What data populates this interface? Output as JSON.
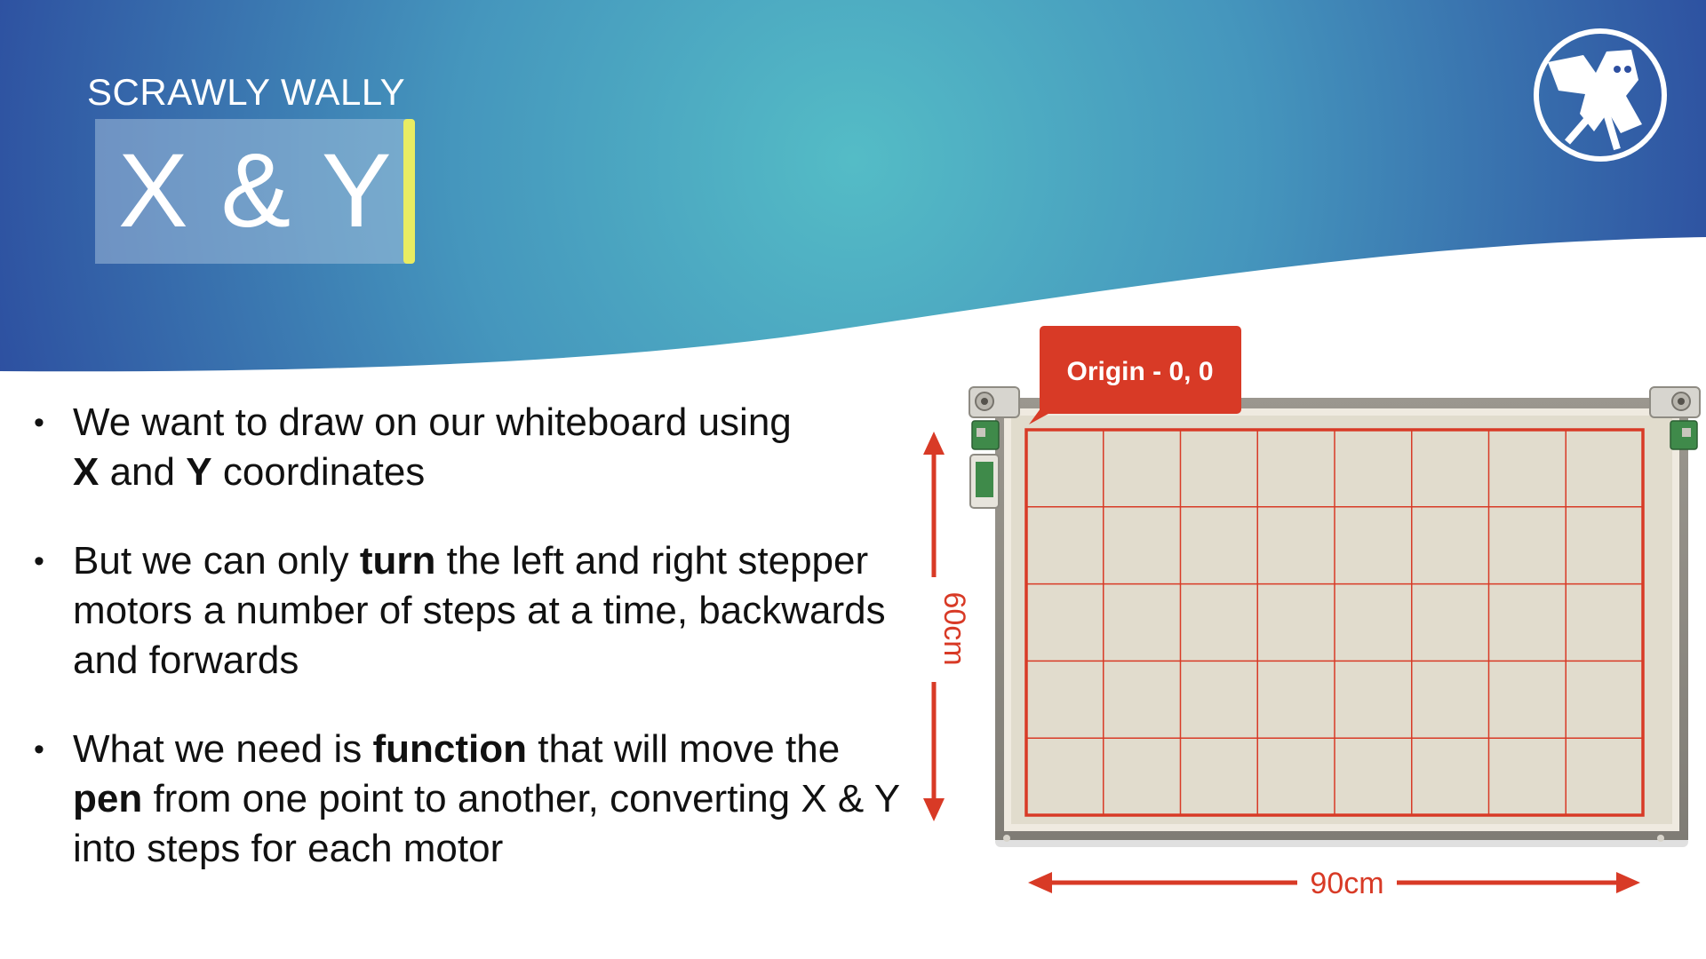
{
  "header": {
    "kicker": "SCRAWLY WALLY",
    "title": "X & Y"
  },
  "logo": {
    "icon": "scrawly-wally-logo-icon"
  },
  "bullets": [
    {
      "parts": [
        {
          "text": "We want to draw on our whiteboard using ",
          "bold": false
        },
        {
          "text": "X",
          "bold": true
        },
        {
          "text": " and ",
          "bold": false
        },
        {
          "text": "Y",
          "bold": true
        },
        {
          "text": " coordinates",
          "bold": false
        }
      ]
    },
    {
      "parts": [
        {
          "text": "But we can only ",
          "bold": false
        },
        {
          "text": "turn",
          "bold": true
        },
        {
          "text": " the left and right stepper motors a number of steps at a time, backwards and forwards",
          "bold": false
        }
      ]
    },
    {
      "parts": [
        {
          "text": "What we need is ",
          "bold": false
        },
        {
          "text": "function",
          "bold": true
        },
        {
          "text": " that will move the ",
          "bold": false
        },
        {
          "text": "pen",
          "bold": true
        },
        {
          "text": " from one point to another, converting X & Y into steps for each motor",
          "bold": false
        }
      ]
    }
  ],
  "diagram": {
    "origin_label": "Origin - 0, 0",
    "height_label": "60cm",
    "width_label": "90cm",
    "grid_columns": 8,
    "grid_rows": 5,
    "colors": {
      "accent": "#d83a26",
      "board_surface": "#e1dccd",
      "board_frame": "#8f8c85"
    }
  }
}
